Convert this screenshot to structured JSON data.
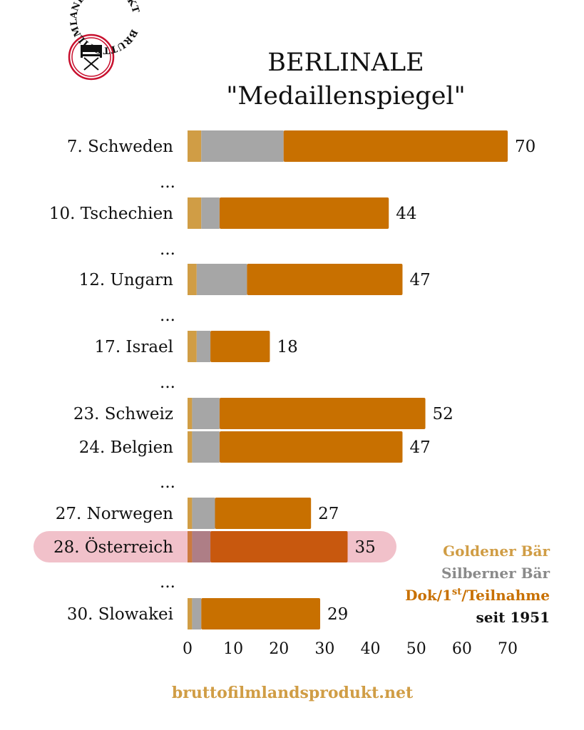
{
  "logo_text": "BRUTTOFILMLANDSPRODUKT",
  "chart_data": {
    "type": "bar",
    "orientation": "horizontal",
    "stacked": true,
    "title": "BERLINALE",
    "subtitle": "\"Medaillenspiegel\"",
    "xlim": [
      0,
      70
    ],
    "xticks": [
      "0",
      "10",
      "20",
      "30",
      "40",
      "50",
      "60",
      "70"
    ],
    "grid": false,
    "legend_placement": "bottom-right",
    "legend": {
      "gold": "Goldener Bär",
      "silver": "Silberner Bär",
      "other_pre": "Dok/1",
      "other_sup": "st",
      "other_post": "/Teilnahme",
      "note": "seit 1951"
    },
    "series": [
      {
        "name": "Goldener Bär",
        "color": "#D09D45"
      },
      {
        "name": "Silberner Bär",
        "color": "#A6A6A6"
      },
      {
        "name": "Dok/1st/Teilnahme",
        "color": "#C87000"
      }
    ],
    "rows": [
      {
        "label": "7. Schweden",
        "gold": 3,
        "silver": 18,
        "other": 49,
        "total": "70"
      },
      {
        "ellipsis": "..."
      },
      {
        "label": "10. Tschechien",
        "gold": 3,
        "silver": 4,
        "other": 37,
        "total": "44"
      },
      {
        "ellipsis": "..."
      },
      {
        "label": "12. Ungarn",
        "gold": 2,
        "silver": 11,
        "other": 34,
        "total": "47"
      },
      {
        "ellipsis": "..."
      },
      {
        "label": "17. Israel",
        "gold": 2,
        "silver": 3,
        "other": 13,
        "total": "18"
      },
      {
        "ellipsis": "..."
      },
      {
        "label": "23. Schweiz",
        "gold": 1,
        "silver": 6,
        "other": 45,
        "total": "52"
      },
      {
        "label": "24. Belgien",
        "gold": 1,
        "silver": 6,
        "other": 40,
        "total": "47"
      },
      {
        "ellipsis": "..."
      },
      {
        "label": "27. Norwegen",
        "gold": 1,
        "silver": 5,
        "other": 21,
        "total": "27"
      },
      {
        "label": "28. Österreich",
        "gold": 1,
        "silver": 4,
        "other": 30,
        "total": "35",
        "highlight": true
      },
      {
        "ellipsis": "..."
      },
      {
        "label": "30. Slowakei",
        "gold": 1,
        "silver": 2,
        "other": 26,
        "total": "29"
      }
    ],
    "highlight_color": "#F1C1CA"
  },
  "footer": "bruttofilmlandsprodukt.net"
}
